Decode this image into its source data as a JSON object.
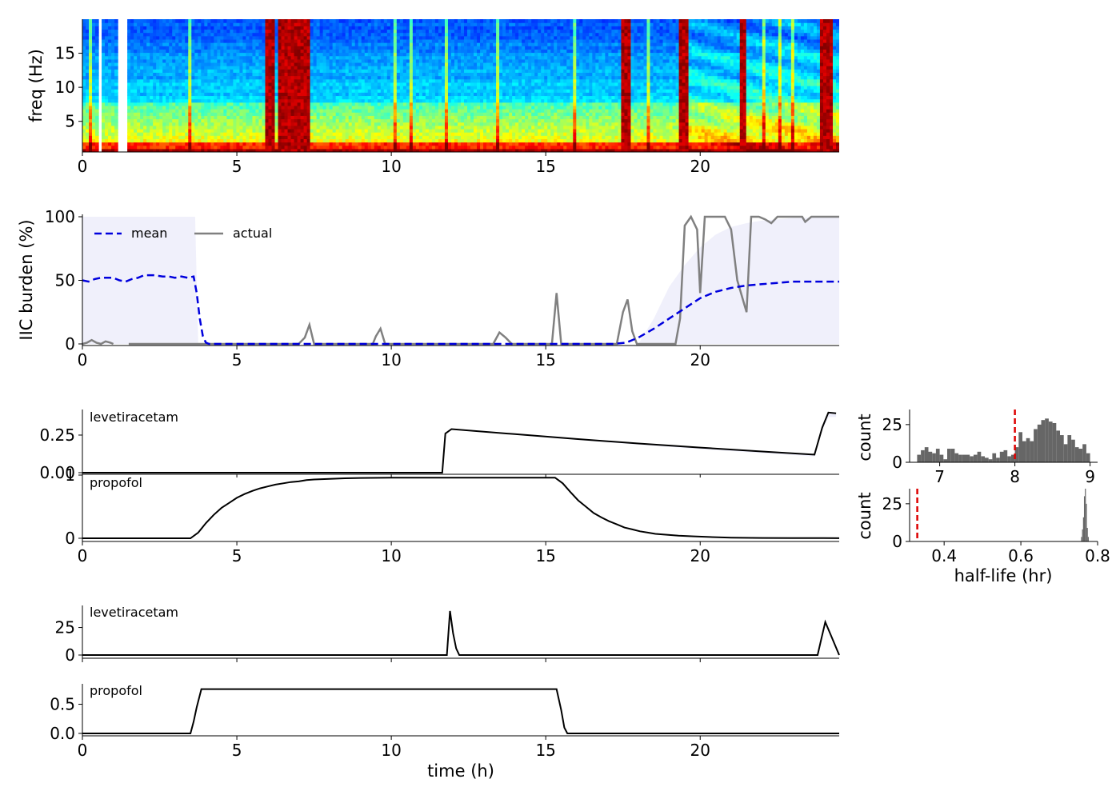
{
  "chart_data": [
    {
      "type": "heatmap",
      "id": "spectrogram",
      "ylabel": "freq (Hz)",
      "xlim": [
        0,
        24.5
      ],
      "ylim": [
        0.5,
        20
      ],
      "xticks": [
        0,
        5,
        10,
        15,
        20
      ],
      "yticks": [
        5,
        10,
        15
      ],
      "colormap": "jet",
      "missing_intervals": [
        [
          0.55,
          0.65
        ],
        [
          1.1,
          1.5
        ]
      ],
      "artifact_intervals": [
        [
          5.95,
          6.2
        ],
        [
          6.3,
          7.4
        ],
        [
          17.4,
          17.8
        ],
        [
          19.3,
          19.6
        ],
        [
          21.3,
          21.5
        ],
        [
          23.9,
          24.3
        ]
      ]
    },
    {
      "type": "line",
      "id": "iic-burden",
      "ylabel": "IIC burden (%)",
      "xlim": [
        0,
        24.5
      ],
      "ylim": [
        0,
        100
      ],
      "xticks": [
        0,
        5,
        10,
        15,
        20
      ],
      "yticks": [
        0,
        50,
        100
      ],
      "legend": [
        "mean",
        "actual"
      ],
      "series": [
        {
          "name": "mean",
          "style": "dashed",
          "color": "#0000dd",
          "x": [
            0,
            0.2,
            0.4,
            0.6,
            1.0,
            1.2,
            1.4,
            1.6,
            1.8,
            2.0,
            2.3,
            2.6,
            2.8,
            3.0,
            3.2,
            3.4,
            3.6,
            3.7,
            3.8,
            3.9,
            4.0,
            4.1,
            5,
            10,
            15,
            17.2,
            17.6,
            18.0,
            18.5,
            19.0,
            19.5,
            20.0,
            20.5,
            21.0,
            21.5,
            22.0,
            22.5,
            23.0,
            23.5,
            24.0,
            24.5
          ],
          "y": [
            50,
            49,
            51,
            52,
            52,
            50,
            49,
            51,
            52,
            54,
            54,
            53,
            53,
            52,
            53,
            52,
            53,
            40,
            20,
            6,
            1,
            0,
            0,
            0,
            0,
            0,
            1,
            5,
            12,
            20,
            28,
            36,
            41,
            44,
            46,
            47,
            48,
            49,
            49,
            49,
            49
          ]
        },
        {
          "name": "actual",
          "style": "solid",
          "color": "#808080",
          "segments": [
            {
              "x": [
                0,
                0.15,
                0.3,
                0.45,
                0.6,
                0.75,
                0.9,
                1.0
              ],
              "y": [
                0,
                1,
                3,
                1,
                0,
                2,
                1,
                0
              ]
            },
            {
              "x": [
                1.5,
                7.0,
                7.2,
                7.35,
                7.5,
                9.4,
                9.5,
                9.65,
                9.8,
                13.3,
                13.5,
                13.7,
                13.9,
                15.2,
                15.35,
                15.5,
                17.3,
                17.5,
                17.65,
                17.8,
                17.95,
                19.2,
                19.35,
                19.5,
                19.7,
                19.9,
                20.0,
                20.15,
                20.5,
                20.8,
                21.0,
                21.2,
                21.5,
                21.65,
                21.9,
                22.1,
                22.3,
                22.5,
                23.0,
                23.3,
                23.4,
                23.6,
                24.5
              ],
              "y": [
                0,
                0,
                5,
                15,
                0,
                0,
                6,
                12,
                0,
                0,
                9,
                5,
                0,
                0,
                40,
                0,
                0,
                25,
                35,
                10,
                0,
                0,
                20,
                93,
                100,
                90,
                40,
                100,
                100,
                100,
                90,
                50,
                25,
                100,
                100,
                98,
                95,
                100,
                100,
                100,
                96,
                100,
                100
              ]
            }
          ]
        }
      ],
      "band": {
        "x": [
          0,
          3.5,
          3.65,
          3.75,
          18.0,
          18.5,
          19.0,
          19.5,
          20.0,
          20.5,
          21.0,
          21.5,
          22.0,
          22.5,
          23.0,
          24.5
        ],
        "upper": [
          100,
          100,
          100,
          0,
          0,
          20,
          45,
          62,
          76,
          86,
          92,
          95,
          97,
          98,
          99,
          100
        ],
        "lower": [
          0,
          0,
          0,
          0,
          0,
          0,
          0,
          0,
          0,
          0,
          0,
          0,
          0,
          0,
          0,
          0
        ]
      }
    },
    {
      "type": "line",
      "id": "drug-concentration",
      "xlim": [
        0,
        24.5
      ],
      "xticks": [
        0,
        5,
        10,
        15,
        20
      ],
      "panels": [
        {
          "name": "levetiracetam",
          "ylim": [
            0,
            0.42
          ],
          "yticks": [
            "0.00",
            "0.25"
          ],
          "x": [
            0,
            11.65,
            11.75,
            11.95,
            14,
            16,
            18,
            20,
            22,
            23.7,
            23.95,
            24.15,
            24.4
          ],
          "y": [
            0,
            0,
            0.26,
            0.29,
            0.256,
            0.224,
            0.194,
            0.167,
            0.141,
            0.12,
            0.3,
            0.4,
            0.395
          ],
          "band": {
            "x": [
              11.75,
              11.95,
              14,
              16,
              18,
              20,
              22,
              23.7,
              23.95,
              24.15,
              24.4
            ],
            "upper": [
              0.26,
              0.29,
              0.258,
              0.227,
              0.197,
              0.17,
              0.144,
              0.123,
              0.3,
              0.4,
              0.395
            ],
            "lower": [
              0.26,
              0.29,
              0.252,
              0.218,
              0.186,
              0.157,
              0.13,
              0.108,
              0.28,
              0.37,
              0.37
            ]
          }
        },
        {
          "name": "propofol",
          "ylim": [
            0,
            1.0
          ],
          "yticks": [
            "0",
            "1"
          ],
          "x": [
            0,
            3.5,
            3.75,
            4.0,
            4.25,
            4.5,
            4.75,
            5.0,
            5.25,
            5.5,
            5.75,
            6.0,
            6.25,
            6.5,
            6.75,
            7.0,
            7.25,
            7.5,
            7.75,
            8.0,
            8.5,
            9.0,
            10,
            11,
            12,
            13,
            14,
            15.3,
            15.55,
            15.8,
            16.05,
            16.3,
            16.55,
            16.8,
            17.05,
            17.3,
            17.55,
            17.8,
            18.05,
            18.3,
            18.55,
            18.8,
            19.3,
            19.8,
            20.3,
            21.0,
            22.0,
            23.0,
            24.0,
            24.5
          ],
          "y": [
            0,
            0,
            0.09,
            0.24,
            0.37,
            0.48,
            0.56,
            0.64,
            0.7,
            0.75,
            0.79,
            0.82,
            0.85,
            0.87,
            0.89,
            0.9,
            0.92,
            0.93,
            0.935,
            0.94,
            0.95,
            0.955,
            0.96,
            0.96,
            0.96,
            0.96,
            0.96,
            0.96,
            0.87,
            0.73,
            0.6,
            0.5,
            0.4,
            0.33,
            0.27,
            0.22,
            0.17,
            0.14,
            0.11,
            0.09,
            0.07,
            0.06,
            0.04,
            0.03,
            0.02,
            0.01,
            0.005,
            0.003,
            0.002,
            0.001
          ]
        }
      ]
    },
    {
      "type": "bar",
      "id": "halflife-hist-levetiracetam",
      "ylabel": "count",
      "xlim": [
        6.6,
        9.1
      ],
      "ylim": [
        0,
        35
      ],
      "xticks": [
        7,
        8,
        9
      ],
      "yticks": [
        0,
        25
      ],
      "marker": 8.0,
      "bin_width": 0.05,
      "bin_start": 6.7,
      "values": [
        5,
        8,
        10,
        7,
        6,
        9,
        5,
        2,
        9,
        9,
        6,
        5,
        5,
        5,
        4,
        5,
        7,
        4,
        3,
        2,
        6,
        3,
        7,
        8,
        4,
        5,
        10,
        20,
        14,
        16,
        14,
        22,
        25,
        28,
        29,
        27,
        26,
        21,
        18,
        12,
        18,
        15,
        10,
        9,
        12,
        6
      ]
    },
    {
      "type": "bar",
      "id": "halflife-hist-propofol",
      "xlabel": "half-life (hr)",
      "ylabel": "count",
      "xlim": [
        0.31,
        0.8
      ],
      "ylim": [
        0,
        35
      ],
      "xticks": [
        "0.4",
        "0.6",
        "0.8"
      ],
      "yticks": [
        0,
        25
      ],
      "marker": 0.33,
      "bin_width": 0.0025,
      "bin_start": 0.757,
      "values": [
        3,
        8,
        16,
        30,
        35,
        25,
        9,
        3
      ]
    },
    {
      "type": "line",
      "id": "drug-dose",
      "xlabel": "time (h)",
      "xlim": [
        0,
        24.5
      ],
      "xticks": [
        0,
        5,
        10,
        15,
        20
      ],
      "panels": [
        {
          "name": "levetiracetam",
          "ylim": [
            0,
            45
          ],
          "yticks": [
            "0",
            "25"
          ],
          "x": [
            0,
            11.65,
            11.8,
            11.9,
            12.0,
            12.1,
            12.2,
            23.8,
            23.9,
            24.05,
            24.2,
            24.5
          ],
          "y": [
            0,
            0,
            0,
            40,
            20,
            6,
            0,
            0,
            12,
            30,
            20,
            0
          ]
        },
        {
          "name": "propofol",
          "ylim": [
            0,
            0.85
          ],
          "yticks": [
            "0.0",
            "0.5"
          ],
          "x": [
            0,
            3.5,
            3.6,
            3.7,
            3.85,
            15.35,
            15.5,
            15.6,
            15.7,
            24.5
          ],
          "y": [
            0,
            0,
            0.2,
            0.45,
            0.76,
            0.76,
            0.4,
            0.1,
            0,
            0
          ]
        }
      ]
    }
  ]
}
